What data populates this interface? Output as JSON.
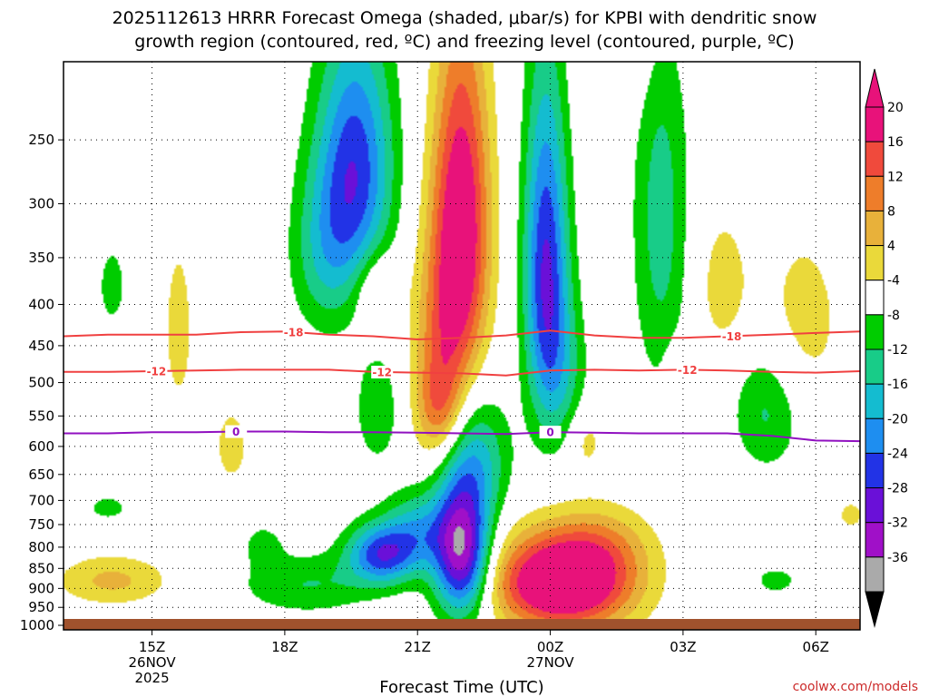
{
  "chart_data": {
    "type": "heatmap",
    "title_line1": "2025112613 HRRR Forecast Omega (shaded, μbar/s) for KPBI with dendritic snow",
    "title_line2": "growth region (contoured, red, ºC) and freezing level (contoured, purple, ºC)",
    "xlabel": "Forecast Time (UTC)",
    "credit": "coolwx.com/models",
    "x_ticks": [
      {
        "hour": 15,
        "label": "15Z",
        "sub1": "26NOV",
        "sub2": "2025"
      },
      {
        "hour": 18,
        "label": "18Z",
        "sub1": "",
        "sub2": ""
      },
      {
        "hour": 21,
        "label": "21Z",
        "sub1": "",
        "sub2": ""
      },
      {
        "hour": 24,
        "label": "00Z",
        "sub1": "27NOV",
        "sub2": ""
      },
      {
        "hour": 27,
        "label": "03Z",
        "sub1": "",
        "sub2": ""
      },
      {
        "hour": 30,
        "label": "06Z",
        "sub1": "",
        "sub2": ""
      }
    ],
    "x_range_hours": [
      13,
      31
    ],
    "y_ticks": [
      "250",
      "300",
      "350",
      "400",
      "450",
      "500",
      "550",
      "600",
      "650",
      "700",
      "750",
      "800",
      "850",
      "900",
      "950",
      "1000"
    ],
    "y_range_hPa": [
      1013,
      200
    ],
    "colorbar": {
      "labels": [
        "20",
        "16",
        "12",
        "8",
        "4",
        "-4",
        "-8",
        "-12",
        "-16",
        "-20",
        "-24",
        "-28",
        "-32",
        "-36"
      ],
      "bins": [
        {
          "lo": 20,
          "hi": 24,
          "color": "#e8127a"
        },
        {
          "lo": 16,
          "hi": 20,
          "color": "#f04a3c"
        },
        {
          "lo": 12,
          "hi": 16,
          "color": "#ee7d2a"
        },
        {
          "lo": 8,
          "hi": 12,
          "color": "#e8b13a"
        },
        {
          "lo": 4,
          "hi": 8,
          "color": "#ead93a"
        },
        {
          "lo": -4,
          "hi": 4,
          "color": "#ffffff"
        },
        {
          "lo": -8,
          "hi": -4,
          "color": "#00cc00"
        },
        {
          "lo": -12,
          "hi": -8,
          "color": "#18cc88"
        },
        {
          "lo": -16,
          "hi": -12,
          "color": "#14bcd0"
        },
        {
          "lo": -20,
          "hi": -16,
          "color": "#1e8ef0"
        },
        {
          "lo": -24,
          "hi": -20,
          "color": "#2233e6"
        },
        {
          "lo": -28,
          "hi": -24,
          "color": "#6a10d8"
        },
        {
          "lo": -32,
          "hi": -28,
          "color": "#a010c8"
        },
        {
          "lo": -36,
          "hi": -32,
          "color": "#aaaaaa"
        }
      ],
      "top_arrow_color": "#e8127a",
      "bottom_arrow_color": "#000000"
    },
    "omega_features": [
      {
        "t": 14.1,
        "p": 380,
        "amp": -6,
        "st": 0.25,
        "sp": 35
      },
      {
        "t": 14.0,
        "p": 715,
        "amp": -6,
        "st": 0.35,
        "sp": 20
      },
      {
        "t": 14.1,
        "p": 880,
        "amp": 9,
        "st": 0.9,
        "sp": 45
      },
      {
        "t": 15.6,
        "p": 430,
        "amp": 5,
        "st": 0.35,
        "sp": 110
      },
      {
        "t": 16.8,
        "p": 600,
        "amp": 5,
        "st": 0.4,
        "sp": 70
      },
      {
        "t": 17.5,
        "p": 790,
        "amp": -5,
        "st": 0.35,
        "sp": 35
      },
      {
        "t": 18.5,
        "p": 890,
        "amp": -8,
        "st": 1.1,
        "sp": 55
      },
      {
        "t": 19.6,
        "p": 270,
        "amp": -22,
        "st": 0.6,
        "sp": 70
      },
      {
        "t": 18.9,
        "p": 345,
        "amp": -10,
        "st": 0.55,
        "sp": 60
      },
      {
        "t": 19.9,
        "p": 445,
        "amp": 4,
        "st": 0.15,
        "sp": 12
      },
      {
        "t": 20.1,
        "p": 385,
        "amp": 8,
        "st": 0.35,
        "sp": 30
      },
      {
        "t": 20.1,
        "p": 540,
        "amp": -8,
        "st": 0.35,
        "sp": 60
      },
      {
        "t": 20.2,
        "p": 815,
        "amp": -22,
        "st": 0.55,
        "sp": 50
      },
      {
        "t": 21.0,
        "p": 760,
        "amp": -12,
        "st": 0.5,
        "sp": 60
      },
      {
        "t": 22.0,
        "p": 320,
        "amp": 25,
        "st": 0.45,
        "sp": 110
      },
      {
        "t": 21.5,
        "p": 470,
        "amp": 12,
        "st": 0.45,
        "sp": 110
      },
      {
        "t": 21.5,
        "p": 540,
        "amp": 8,
        "st": 0.35,
        "sp": 50
      },
      {
        "t": 22.3,
        "p": 620,
        "amp": -12,
        "st": 0.55,
        "sp": 80
      },
      {
        "t": 22.0,
        "p": 810,
        "amp": -33,
        "st": 0.45,
        "sp": 110
      },
      {
        "t": 23.9,
        "p": 360,
        "amp": -24,
        "st": 0.35,
        "sp": 120
      },
      {
        "t": 24.3,
        "p": 490,
        "amp": -8,
        "st": 0.4,
        "sp": 80
      },
      {
        "t": 24.8,
        "p": 590,
        "amp": 6,
        "st": 0.3,
        "sp": 40
      },
      {
        "t": 24.3,
        "p": 885,
        "amp": 32,
        "st": 1.1,
        "sp": 85
      },
      {
        "t": 25.2,
        "p": 790,
        "amp": 6,
        "st": 0.8,
        "sp": 60
      },
      {
        "t": 26.5,
        "p": 310,
        "amp": -10,
        "st": 0.45,
        "sp": 130
      },
      {
        "t": 25.8,
        "p": 170,
        "amp": 5,
        "st": 0.7,
        "sp": 40
      },
      {
        "t": 26.9,
        "p": 490,
        "amp": 6,
        "st": 0.2,
        "sp": 30
      },
      {
        "t": 27.9,
        "p": 380,
        "amp": 6,
        "st": 0.45,
        "sp": 60
      },
      {
        "t": 28.9,
        "p": 540,
        "amp": -9,
        "st": 0.55,
        "sp": 70
      },
      {
        "t": 29.1,
        "p": 880,
        "amp": -5,
        "st": 0.5,
        "sp": 35
      },
      {
        "t": 29.7,
        "p": 420,
        "amp": 6,
        "st": 0.7,
        "sp": 80
      },
      {
        "t": 30.8,
        "p": 730,
        "amp": 5,
        "st": 0.3,
        "sp": 30
      }
    ],
    "isotherms": [
      {
        "label": "-18",
        "color": "#f04040",
        "points": [
          [
            13,
            438
          ],
          [
            14,
            436
          ],
          [
            15,
            436
          ],
          [
            16,
            436
          ],
          [
            17,
            433
          ],
          [
            18,
            432
          ],
          [
            19,
            436
          ],
          [
            20,
            438
          ],
          [
            21,
            442
          ],
          [
            22,
            440
          ],
          [
            23,
            437
          ],
          [
            24,
            431
          ],
          [
            25,
            437
          ],
          [
            26,
            440
          ],
          [
            27,
            440
          ],
          [
            28,
            438
          ],
          [
            29,
            436
          ],
          [
            30,
            434
          ],
          [
            31,
            432
          ]
        ],
        "label_hours": [
          18.2,
          28.1
        ]
      },
      {
        "label": "-12",
        "color": "#f04040",
        "points": [
          [
            13,
            485
          ],
          [
            14,
            485
          ],
          [
            15,
            484
          ],
          [
            16,
            483
          ],
          [
            17,
            482
          ],
          [
            18,
            482
          ],
          [
            19,
            482
          ],
          [
            20,
            485
          ],
          [
            21,
            486
          ],
          [
            22,
            487
          ],
          [
            23,
            490
          ],
          [
            24,
            483
          ],
          [
            25,
            482
          ],
          [
            26,
            483
          ],
          [
            27,
            482
          ],
          [
            28,
            483
          ],
          [
            29,
            485
          ],
          [
            30,
            486
          ],
          [
            31,
            484
          ]
        ],
        "label_hours": [
          15.1,
          20.2,
          27.1
        ]
      },
      {
        "label": "0",
        "color": "#9010c0",
        "points": [
          [
            13,
            578
          ],
          [
            14,
            578
          ],
          [
            15,
            576
          ],
          [
            16,
            576
          ],
          [
            17,
            575
          ],
          [
            18,
            575
          ],
          [
            19,
            576
          ],
          [
            20,
            576
          ],
          [
            21,
            577
          ],
          [
            22,
            578
          ],
          [
            23,
            579
          ],
          [
            24,
            576
          ],
          [
            25,
            577
          ],
          [
            26,
            578
          ],
          [
            27,
            578
          ],
          [
            28,
            578
          ],
          [
            29,
            582
          ],
          [
            30,
            590
          ],
          [
            31,
            591
          ]
        ],
        "label_hours": [
          16.9,
          24.0
        ]
      }
    ],
    "terrain_color": "#a0522d"
  }
}
